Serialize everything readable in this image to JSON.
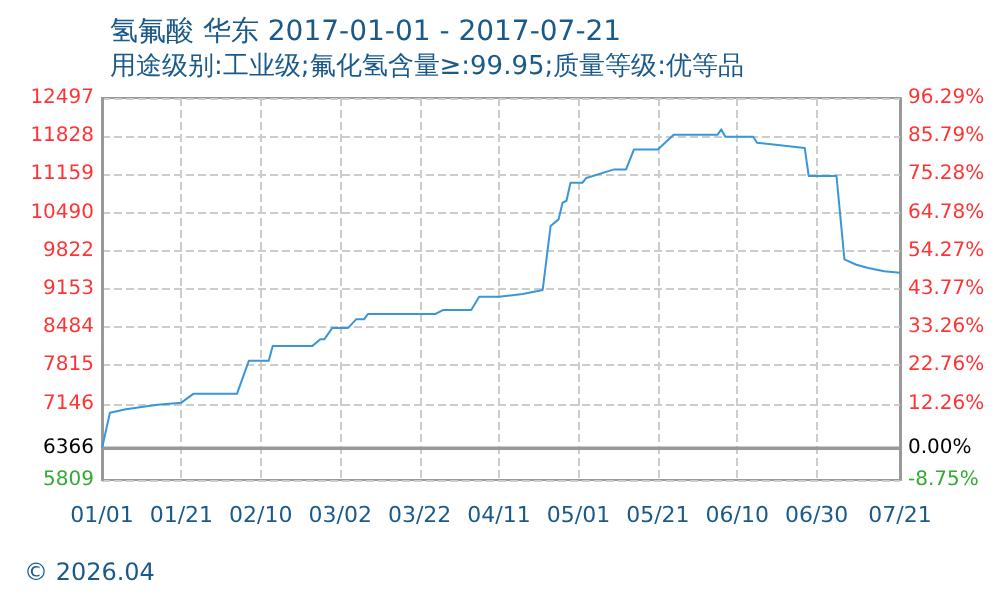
{
  "chart_data": {
    "type": "line",
    "title": "氢氟酸 华东 2017-01-01 - 2017-07-21",
    "subtitle": "用途级别:工业级;氟化氢含量≥:99.95;质量等级:优等品",
    "annotations": [
      "© 2026.04"
    ],
    "x": [
      "2017-01-01",
      "2017-01-03",
      "2017-01-07",
      "2017-01-15",
      "2017-01-21",
      "2017-01-24",
      "2017-02-04",
      "2017-02-07",
      "2017-02-12",
      "2017-02-13",
      "2017-02-23",
      "2017-02-25",
      "2017-02-26",
      "2017-02-28",
      "2017-03-04",
      "2017-03-06",
      "2017-03-08",
      "2017-03-09",
      "2017-03-26",
      "2017-03-28",
      "2017-04-04",
      "2017-04-06",
      "2017-04-11",
      "2017-04-17",
      "2017-04-22",
      "2017-04-24",
      "2017-04-26",
      "2017-04-27",
      "2017-04-28",
      "2017-04-29",
      "2017-05-02",
      "2017-05-03",
      "2017-05-10",
      "2017-05-13",
      "2017-05-15",
      "2017-05-21",
      "2017-05-25",
      "2017-06-05",
      "2017-06-06",
      "2017-06-07",
      "2017-06-14",
      "2017-06-15",
      "2017-06-27",
      "2017-06-28",
      "2017-07-05",
      "2017-07-07",
      "2017-07-10",
      "2017-07-13",
      "2017-07-17",
      "2017-07-21"
    ],
    "series": [
      {
        "color": "#3a96d8",
        "values": [
          6366,
          6988,
          7047,
          7128,
          7163,
          7317,
          7317,
          7898,
          7898,
          8157,
          8157,
          8272,
          8272,
          8472,
          8472,
          8622,
          8622,
          8717,
          8717,
          8787,
          8787,
          9018,
          9018,
          9067,
          9137,
          10257,
          10372,
          10663,
          10698,
          11013,
          11013,
          11097,
          11247,
          11247,
          11597,
          11597,
          11853,
          11853,
          11947,
          11818,
          11818,
          11713,
          11622,
          11132,
          11132,
          9672,
          9578,
          9522,
          9462,
          9437
        ]
      }
    ],
    "xlim": [
      "2017-01-01",
      "2017-07-21"
    ],
    "xticks": [
      {
        "value": "2017-01-01",
        "label": "01/01"
      },
      {
        "value": "2017-01-21",
        "label": "01/21"
      },
      {
        "value": "2017-02-10",
        "label": "02/10"
      },
      {
        "value": "2017-03-02",
        "label": "03/02"
      },
      {
        "value": "2017-03-22",
        "label": "03/22"
      },
      {
        "value": "2017-04-11",
        "label": "04/11"
      },
      {
        "value": "2017-05-01",
        "label": "05/01"
      },
      {
        "value": "2017-05-21",
        "label": "05/21"
      },
      {
        "value": "2017-06-10",
        "label": "06/10"
      },
      {
        "value": "2017-06-30",
        "label": "06/30"
      },
      {
        "value": "2017-07-21",
        "label": "07/21"
      }
    ],
    "ylim": [
      5809,
      12497
    ],
    "yticks": [
      5809,
      6366,
      7146,
      7815,
      8484,
      9153,
      9822,
      10490,
      11159,
      11828,
      12497
    ],
    "y2lim": [
      -8.75,
      96.29
    ],
    "y2ticks": [
      {
        "value": -8.75,
        "label": "-8.75%"
      },
      {
        "value": 0,
        "label": "0.00%"
      },
      {
        "value": 12.26,
        "label": "12.26%"
      },
      {
        "value": 22.76,
        "label": "22.76%"
      },
      {
        "value": 33.26,
        "label": "33.26%"
      },
      {
        "value": 43.77,
        "label": "43.77%"
      },
      {
        "value": 54.27,
        "label": "54.27%"
      },
      {
        "value": 64.78,
        "label": "64.78%"
      },
      {
        "value": 75.28,
        "label": "75.28%"
      },
      {
        "value": 85.79,
        "label": "85.79%"
      },
      {
        "value": 96.29,
        "label": "96.29%"
      }
    ],
    "ref_lines": [
      {
        "axis": "y",
        "value": 6366,
        "color": "#999999",
        "line_style": "solid"
      }
    ],
    "grid": true,
    "marker": "none",
    "line_style": "solid"
  }
}
